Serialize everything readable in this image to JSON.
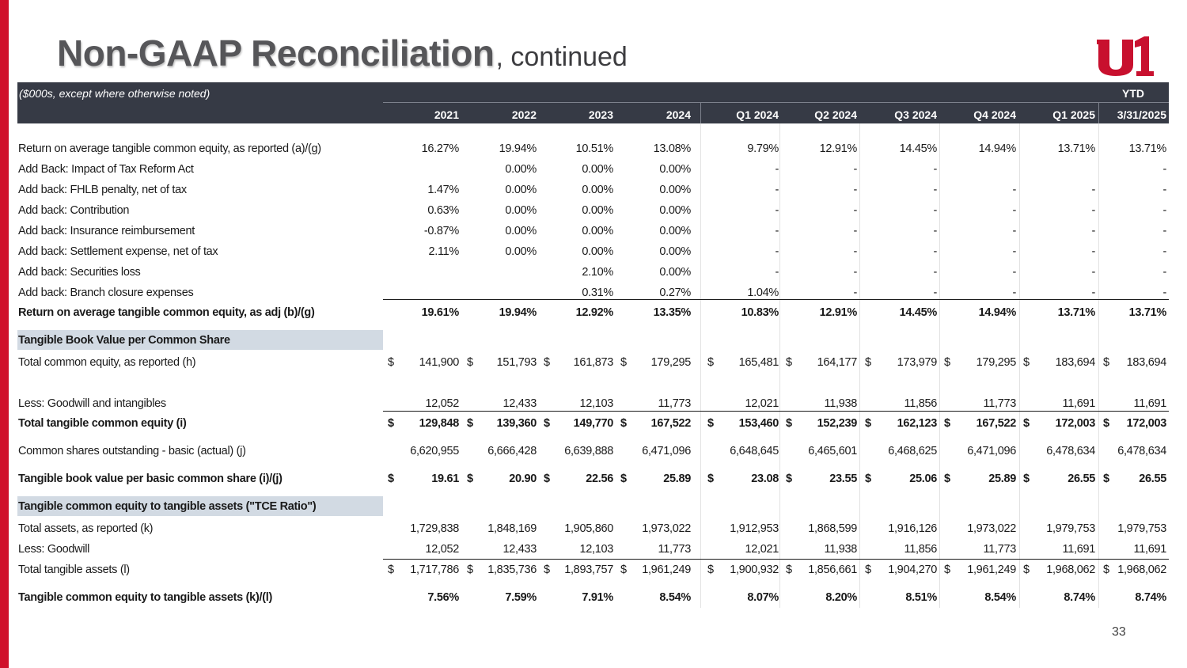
{
  "slide": {
    "title_main": "Non-GAAP Reconciliation",
    "title_sub": ", continued",
    "page_number": "33",
    "brand_color": "#d0102a",
    "logo_icon": "company-logo-u1"
  },
  "table": {
    "note": "($000s, except where otherwise noted)",
    "ytd_label": "YTD",
    "columns": [
      "2021",
      "2022",
      "2023",
      "2024",
      "Q1 2024",
      "Q2 2024",
      "Q3 2024",
      "Q4 2024",
      "Q1 2025",
      "3/31/2025"
    ],
    "rows": [
      {
        "label": "Return on average tangible common equity, as reported (a)/(g)",
        "values": [
          "16.27%",
          "19.94%",
          "10.51%",
          "13.08%",
          "9.79%",
          "12.91%",
          "14.45%",
          "14.94%",
          "13.71%",
          "13.71%"
        ]
      },
      {
        "label": "Add Back: Impact of Tax Reform Act",
        "values": [
          "",
          "0.00%",
          "0.00%",
          "0.00%",
          "-",
          "-",
          "-",
          "",
          "",
          "-"
        ]
      },
      {
        "label": "Add back: FHLB penalty, net of tax",
        "values": [
          "1.47%",
          "0.00%",
          "0.00%",
          "0.00%",
          "-",
          "-",
          "-",
          "-",
          "-",
          "-"
        ]
      },
      {
        "label": "Add back: Contribution",
        "values": [
          "0.63%",
          "0.00%",
          "0.00%",
          "0.00%",
          "-",
          "-",
          "-",
          "-",
          "-",
          "-"
        ]
      },
      {
        "label": "Add back: Insurance reimbursement",
        "values": [
          "-0.87%",
          "0.00%",
          "0.00%",
          "0.00%",
          "-",
          "-",
          "-",
          "-",
          "-",
          "-"
        ]
      },
      {
        "label": "Add back: Settlement expense, net of tax",
        "values": [
          "2.11%",
          "0.00%",
          "0.00%",
          "0.00%",
          "-",
          "-",
          "-",
          "-",
          "-",
          "-"
        ]
      },
      {
        "label": "Add back: Securities loss",
        "values": [
          "",
          "",
          "2.10%",
          "0.00%",
          "-",
          "-",
          "-",
          "-",
          "-",
          "-"
        ]
      },
      {
        "label": "Add back: Branch closure expenses",
        "values": [
          "",
          "",
          "0.31%",
          "0.27%",
          "1.04%",
          "-",
          "-",
          "-",
          "-",
          "-"
        ]
      },
      {
        "label": "Return on average tangible common equity, as adj (b)/(g)",
        "values": [
          "19.61%",
          "19.94%",
          "12.92%",
          "13.35%",
          "10.83%",
          "12.91%",
          "14.45%",
          "14.94%",
          "13.71%",
          "13.71%"
        ]
      },
      {
        "section": "Tangible Book Value per Common Share"
      },
      {
        "label": "Total common equity, as reported (h)",
        "values": [
          "141,900",
          "151,793",
          "161,873",
          "179,295",
          "165,481",
          "164,177",
          "173,979",
          "179,295",
          "183,694",
          "183,694"
        ]
      },
      {
        "label": "Less: Goodwill and intangibles",
        "values": [
          "12,052",
          "12,433",
          "12,103",
          "11,773",
          "12,021",
          "11,938",
          "11,856",
          "11,773",
          "11,691",
          "11,691"
        ]
      },
      {
        "label": "Total tangible common equity (i)",
        "values": [
          "129,848",
          "139,360",
          "149,770",
          "167,522",
          "153,460",
          "152,239",
          "162,123",
          "167,522",
          "172,003",
          "172,003"
        ]
      },
      {
        "label": "Common shares outstanding - basic (actual) (j)",
        "values": [
          "6,620,955",
          "6,666,428",
          "6,639,888",
          "6,471,096",
          "6,648,645",
          "6,465,601",
          "6,468,625",
          "6,471,096",
          "6,478,634",
          "6,478,634"
        ]
      },
      {
        "label": "Tangible book value per basic common share (i)/(j)",
        "values": [
          "19.61",
          "20.90",
          "22.56",
          "25.89",
          "23.08",
          "23.55",
          "25.06",
          "25.89",
          "26.55",
          "26.55"
        ]
      },
      {
        "section": "Tangible common equity to tangible assets (\"TCE Ratio\")"
      },
      {
        "label": "Total assets, as reported (k)",
        "values": [
          "1,729,838",
          "1,848,169",
          "1,905,860",
          "1,973,022",
          "1,912,953",
          "1,868,599",
          "1,916,126",
          "1,973,022",
          "1,979,753",
          "1,979,753"
        ]
      },
      {
        "label": "Less: Goodwill",
        "values": [
          "12,052",
          "12,433",
          "12,103",
          "11,773",
          "12,021",
          "11,938",
          "11,856",
          "11,773",
          "11,691",
          "11,691"
        ]
      },
      {
        "label": "Total tangible assets (l)",
        "values": [
          "1,717,786",
          "1,835,736",
          "1,893,757",
          "1,961,249",
          "1,900,932",
          "1,856,661",
          "1,904,270",
          "1,961,249",
          "1,968,062",
          "1,968,062"
        ]
      },
      {
        "label": "Tangible common equity to tangible assets (k)/(l)",
        "values": [
          "7.56%",
          "7.59%",
          "7.91%",
          "8.54%",
          "8.07%",
          "8.20%",
          "8.51%",
          "8.54%",
          "8.74%",
          "8.74%"
        ]
      }
    ],
    "currency_symbol": "$"
  }
}
